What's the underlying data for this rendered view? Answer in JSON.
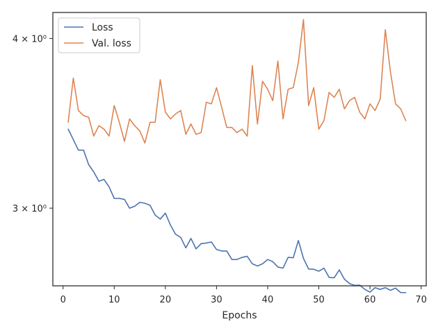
{
  "chart_data": {
    "type": "line",
    "title": "",
    "xlabel": "Epochs",
    "ylabel": "",
    "yscale": "log",
    "xlim": [
      -2,
      71
    ],
    "ylim": [
      2.63,
      4.18
    ],
    "xticks": [
      0,
      10,
      20,
      30,
      40,
      50,
      60,
      70
    ],
    "yticks": [
      {
        "value": 3.0,
        "label": "3 × 10⁰"
      },
      {
        "value": 4.0,
        "label": "4 × 10⁰"
      }
    ],
    "grid": false,
    "legend": "top-left",
    "x": [
      1,
      2,
      3,
      4,
      5,
      6,
      7,
      8,
      9,
      10,
      11,
      12,
      13,
      14,
      15,
      16,
      17,
      18,
      19,
      20,
      21,
      22,
      23,
      24,
      25,
      26,
      27,
      28,
      29,
      30,
      31,
      32,
      33,
      34,
      35,
      36,
      37,
      38,
      39,
      40,
      41,
      42,
      43,
      44,
      45,
      46,
      47,
      48,
      49,
      50,
      51,
      52,
      53,
      54,
      55,
      56,
      57,
      58,
      59,
      60,
      61,
      62,
      63,
      64,
      65,
      66,
      67
    ],
    "series": [
      {
        "name": "Loss",
        "color": "#4c72b0",
        "values": [
          3.43,
          3.37,
          3.31,
          3.31,
          3.23,
          3.19,
          3.14,
          3.15,
          3.11,
          3.05,
          3.05,
          3.045,
          3.0,
          3.01,
          3.03,
          3.025,
          3.015,
          2.965,
          2.945,
          2.975,
          2.915,
          2.87,
          2.855,
          2.805,
          2.85,
          2.8,
          2.825,
          2.828,
          2.833,
          2.797,
          2.79,
          2.79,
          2.75,
          2.75,
          2.76,
          2.765,
          2.73,
          2.72,
          2.73,
          2.75,
          2.74,
          2.715,
          2.71,
          2.76,
          2.758,
          2.84,
          2.755,
          2.706,
          2.705,
          2.696,
          2.71,
          2.668,
          2.666,
          2.702,
          2.66,
          2.64,
          2.632,
          2.633,
          2.614,
          2.602,
          2.622,
          2.614,
          2.622,
          2.61,
          2.62,
          2.6,
          2.6
        ]
      },
      {
        "name": "Val. loss",
        "color": "#dd8452",
        "values": [
          3.47,
          3.74,
          3.54,
          3.51,
          3.5,
          3.39,
          3.45,
          3.43,
          3.39,
          3.57,
          3.47,
          3.36,
          3.49,
          3.45,
          3.42,
          3.35,
          3.47,
          3.47,
          3.73,
          3.53,
          3.49,
          3.52,
          3.54,
          3.4,
          3.46,
          3.4,
          3.41,
          3.59,
          3.58,
          3.68,
          3.56,
          3.44,
          3.44,
          3.41,
          3.43,
          3.39,
          3.82,
          3.46,
          3.72,
          3.67,
          3.6,
          3.85,
          3.49,
          3.67,
          3.68,
          3.84,
          4.13,
          3.57,
          3.68,
          3.43,
          3.48,
          3.65,
          3.62,
          3.67,
          3.55,
          3.6,
          3.62,
          3.53,
          3.49,
          3.58,
          3.54,
          3.61,
          4.06,
          3.78,
          3.58,
          3.55,
          3.48
        ]
      }
    ]
  }
}
